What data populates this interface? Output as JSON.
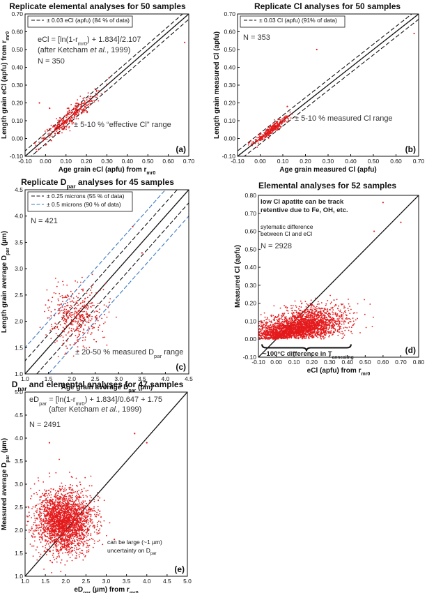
{
  "colors": {
    "points": "#e41a1c",
    "axis": "#111111",
    "ref_black": "#111111",
    "ref_blue": "#3a78c2"
  },
  "chart_data": [
    {
      "type": "scatter",
      "panel": "(a)",
      "title": "Replicate elemental analyses for 50 samples",
      "xlabel": "Age grain eCl (apfu) from r_mr0",
      "ylabel": "Length grain eCl (apfu) from r_mr0",
      "xlim": [
        -0.1,
        0.7
      ],
      "ylim": [
        -0.1,
        0.7
      ],
      "xticks": [
        "-0.10",
        "0.00",
        "0.10",
        "0.20",
        "0.30",
        "0.40",
        "0.50",
        "0.60",
        "0.70"
      ],
      "yticks": [
        "-0.10",
        "0.00",
        "0.10",
        "0.20",
        "0.30",
        "0.40",
        "0.50",
        "0.60",
        "0.70"
      ],
      "reference_lines": [
        {
          "label": "1:1",
          "offset": 0,
          "style": "solid",
          "color": "#111111"
        },
        {
          "label": "± 0.03 eCl (apfu) (84 % of data)",
          "offset": 0.03,
          "style": "dashed",
          "color": "#111111"
        }
      ],
      "legend": [
        "± 0.03 eCl (apfu) (84 % of data)"
      ],
      "annotations": {
        "formula": "eCl = [ln(1-r_mr0) + 1.834]/2.107",
        "citation": "(after Ketcham et al., 1999)",
        "n": "N = 350",
        "note": "± 5-10 % “effective Cl” range"
      },
      "cluster": {
        "n": 350,
        "center": [
          0.12,
          0.12
        ],
        "spread": 0.07,
        "along_diagonal": true
      },
      "outliers": [
        [
          -0.03,
          0.2
        ],
        [
          0.02,
          0.17
        ],
        [
          0.68,
          0.54
        ],
        [
          0.31,
          0.34
        ]
      ]
    },
    {
      "type": "scatter",
      "panel": "(b)",
      "title": "Replicate Cl analyses for 50 samples",
      "xlabel": "Age grain measured Cl (apfu)",
      "ylabel": "Length grain measured Cl (apfu)",
      "xlim": [
        -0.1,
        0.7
      ],
      "ylim": [
        -0.1,
        0.7
      ],
      "xticks": [
        "-0.10",
        "0.00",
        "0.10",
        "0.20",
        "0.30",
        "0.40",
        "0.50",
        "0.60",
        "0.70"
      ],
      "yticks": [
        "-0.10",
        "0.00",
        "0.10",
        "0.20",
        "0.30",
        "0.40",
        "0.50",
        "0.60",
        "0.70"
      ],
      "reference_lines": [
        {
          "label": "1:1",
          "offset": 0,
          "style": "solid",
          "color": "#111111"
        },
        {
          "label": "± 0.03 Cl (apfu) (91% of data)",
          "offset": 0.03,
          "style": "dashed",
          "color": "#111111"
        }
      ],
      "legend": [
        "± 0.03 Cl (apfu) (91% of data)"
      ],
      "annotations": {
        "n": "N = 353",
        "note": "± 5-10 % measured Cl range"
      },
      "cluster": {
        "n": 353,
        "center": [
          0.05,
          0.05
        ],
        "spread": 0.035,
        "along_diagonal": true
      },
      "outliers": [
        [
          0.25,
          0.5
        ],
        [
          0.68,
          0.59
        ],
        [
          0.12,
          0.18
        ]
      ]
    },
    {
      "type": "scatter",
      "panel": "(c)",
      "title": "Replicate D_par analyses for 45 samples",
      "xlabel": "Age grain average D_par (µm)",
      "ylabel": "Length grain average D_par (µm)",
      "xlim": [
        1.0,
        4.5
      ],
      "ylim": [
        1.0,
        4.5
      ],
      "xticks": [
        "1.0",
        "1.5",
        "2.0",
        "2.5",
        "3.0",
        "3.5",
        "4.0",
        "4.5"
      ],
      "yticks": [
        "1.0",
        "1.5",
        "2.0",
        "2.5",
        "3.0",
        "3.5",
        "4.0",
        "4.5"
      ],
      "reference_lines": [
        {
          "label": "1:1",
          "offset": 0,
          "style": "solid",
          "color": "#111111"
        },
        {
          "label": "± 0.25 microns (55 % of data)",
          "offset": 0.25,
          "style": "dashed",
          "color": "#111111"
        },
        {
          "label": "± 0.5 microns (90 % of data)",
          "offset": 0.5,
          "style": "dashed",
          "color": "#3a78c2"
        }
      ],
      "legend": [
        "± 0.25 microns (55 % of data)",
        "± 0.5 microns (90 % of data)"
      ],
      "annotations": {
        "n": "N = 421",
        "note": "± 20-50 % measured D_par range"
      },
      "cluster": {
        "n": 421,
        "center": [
          2.1,
          2.1
        ],
        "spread": 0.28,
        "along_diagonal": false
      },
      "outliers": [
        [
          3.3,
          3.8
        ],
        [
          3.5,
          3.3
        ],
        [
          1.5,
          2.4
        ]
      ]
    },
    {
      "type": "scatter",
      "panel": "(d)",
      "title": "Elemental analyses for 52 samples",
      "xlabel": "eCl (apfu) from r_mr0",
      "ylabel": "Measured Cl (apfu)",
      "xlim": [
        -0.1,
        0.8
      ],
      "ylim": [
        -0.1,
        0.8
      ],
      "xticks": [
        "-0.10",
        "0.00",
        "0.10",
        "0.20",
        "0.30",
        "0.40",
        "0.50",
        "0.60",
        "0.70",
        "0.80"
      ],
      "yticks": [
        "-0.10",
        "0.00",
        "0.10",
        "0.20",
        "0.30",
        "0.40",
        "0.50",
        "0.60",
        "0.70",
        "0.80"
      ],
      "reference_lines": [
        {
          "label": "1:1",
          "offset": 0,
          "style": "solid",
          "color": "#111111"
        }
      ],
      "annotations": {
        "box": "low Cl apatite can be track retentive due to Fe, OH, etc.",
        "systematic": "sytematic difference between Cl and eCl",
        "n": "N = 2928",
        "bracket": "~100°C difference in T_annealing"
      },
      "cluster": {
        "n": 2928,
        "center": [
          0.12,
          0.08
        ],
        "spread": 0.13,
        "along_diagonal": false
      },
      "outliers": [
        [
          0.6,
          0.76
        ],
        [
          0.7,
          0.65
        ],
        [
          0.55,
          0.6
        ]
      ]
    },
    {
      "type": "scatter",
      "panel": "(e)",
      "title": "D_par and elemental analyses for 47 samples",
      "xlabel": "eD_par (µm) from r_mr0",
      "ylabel": "Measured average D_par (µm)",
      "xlim": [
        1.0,
        5.0
      ],
      "ylim": [
        1.0,
        5.0
      ],
      "xticks": [
        "1.0",
        "1.5",
        "2.0",
        "2.5",
        "3.0",
        "3.5",
        "4.0",
        "4.5",
        "5.0"
      ],
      "yticks": [
        "1.0",
        "1.5",
        "2.0",
        "2.5",
        "3.0",
        "3.5",
        "4.0",
        "4.5",
        "5.0"
      ],
      "reference_lines": [
        {
          "label": "1:1",
          "offset": 0,
          "style": "solid",
          "color": "#111111"
        }
      ],
      "annotations": {
        "formula": "eD_par = [ln(1-r_mr0) + 1.834]/0.647 + 1.75",
        "citation": "(after Ketcham et al., 1999)",
        "n": "N = 2491",
        "note_line1": "can be large (~1 µm)",
        "note_line2": "uncertainty on D_par"
      },
      "cluster": {
        "n": 2491,
        "center": [
          1.95,
          2.2
        ],
        "spread": 0.35,
        "along_diagonal": false
      },
      "outliers": [
        [
          3.7,
          4.1
        ],
        [
          4.0,
          3.9
        ],
        [
          3.2,
          1.8
        ],
        [
          1.6,
          3.9
        ]
      ]
    }
  ]
}
